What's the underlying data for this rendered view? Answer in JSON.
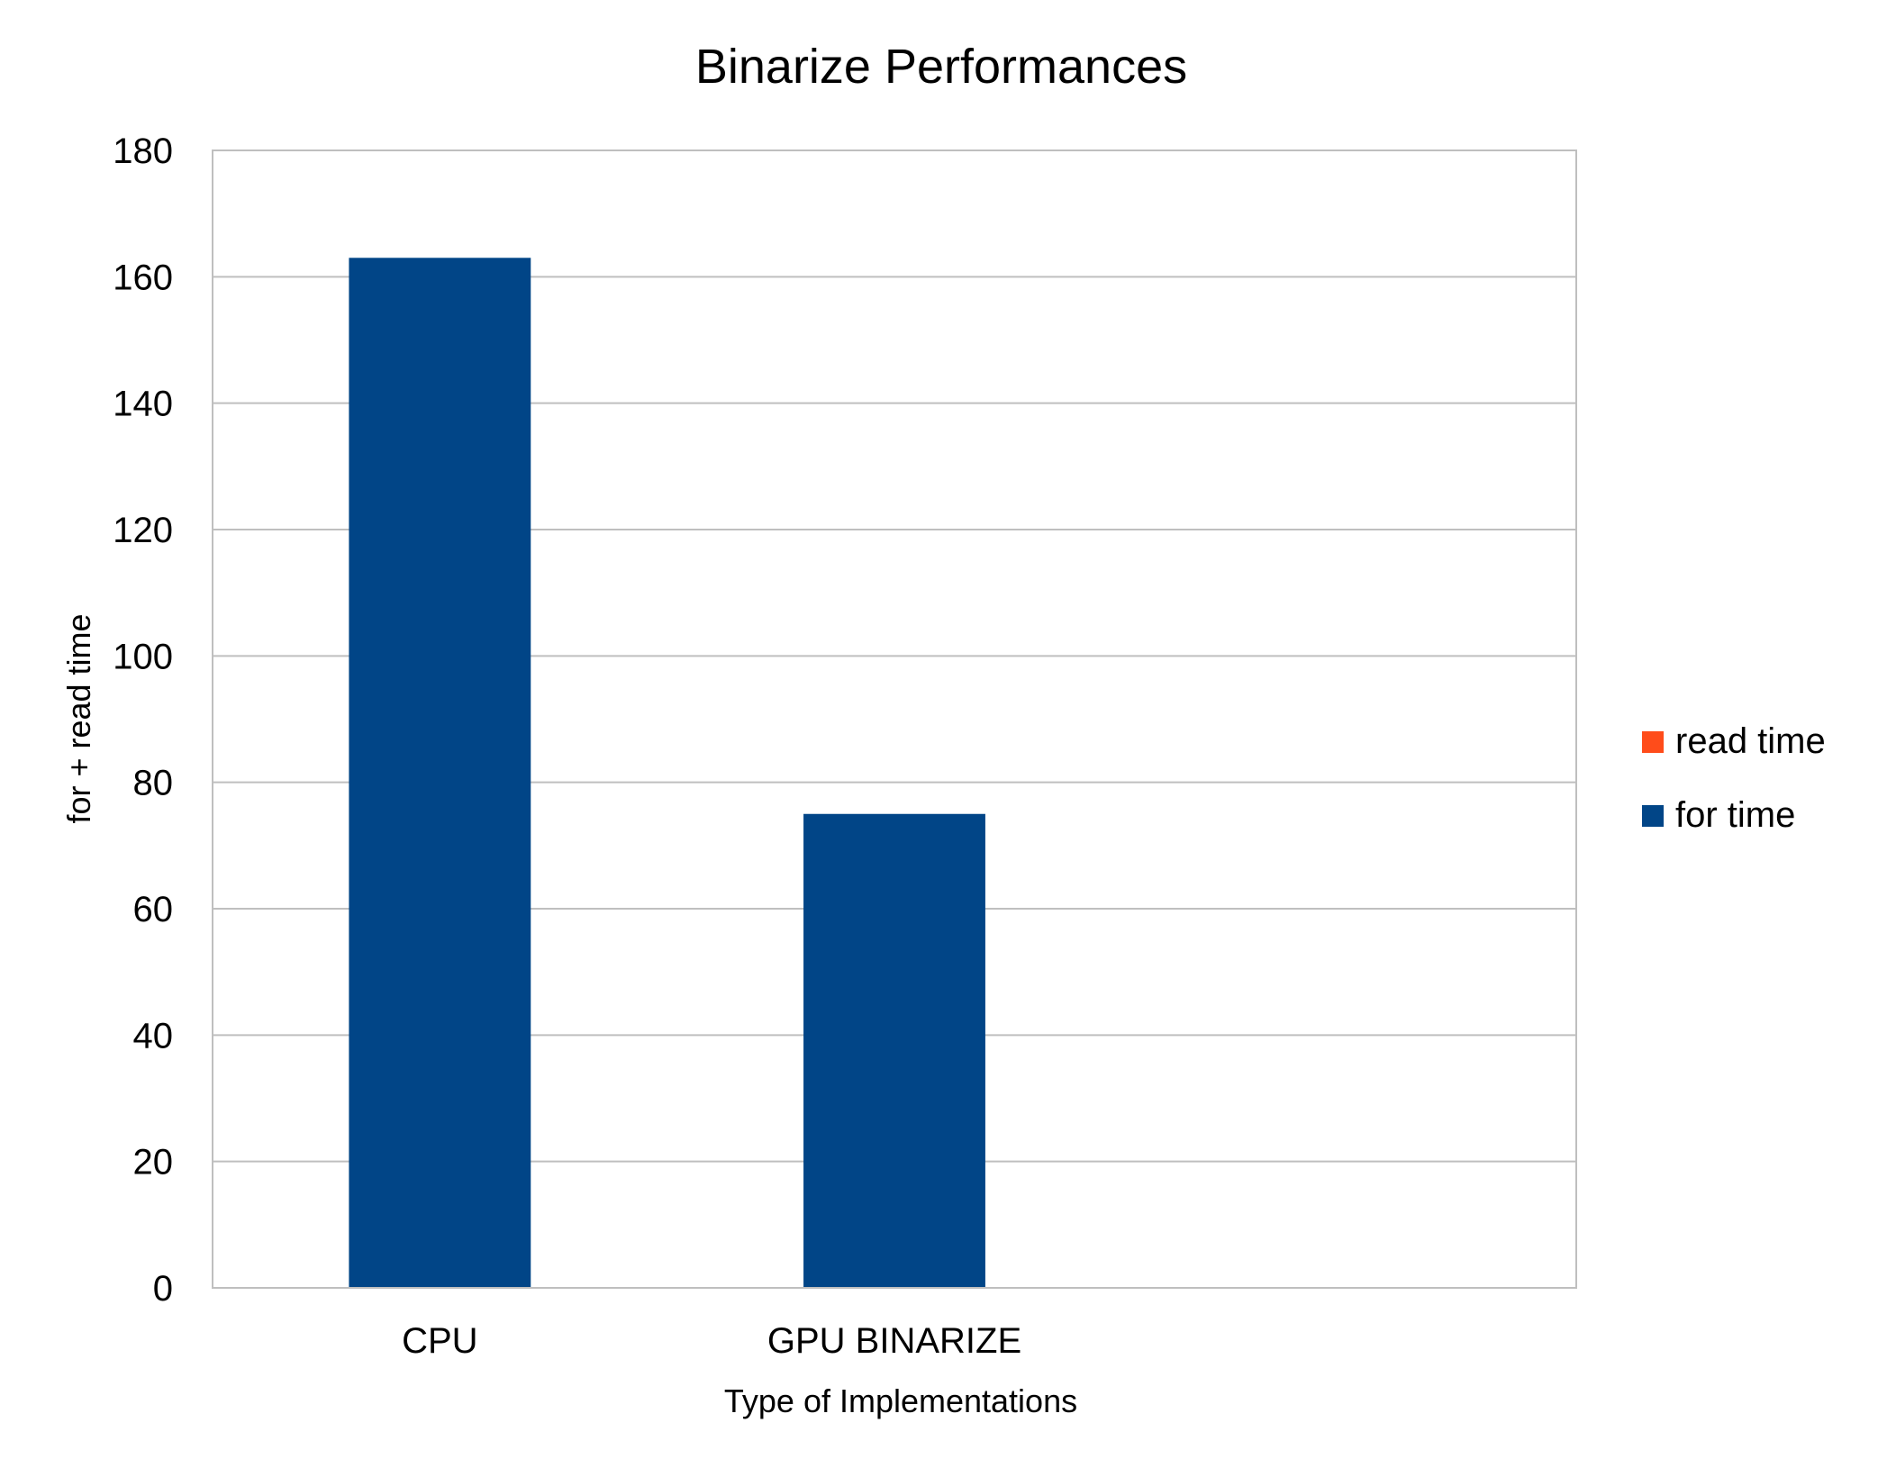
{
  "chart_data": {
    "type": "bar",
    "stacked": true,
    "title": "Binarize Performances",
    "xlabel": "Type of Implementations",
    "ylabel": "for + read time",
    "categories": [
      "CPU",
      "GPU BINARIZE",
      ""
    ],
    "series": [
      {
        "name": "for time",
        "values": [
          163,
          75,
          0
        ],
        "color": "#014587"
      },
      {
        "name": "read time",
        "values": [
          0,
          0,
          0
        ],
        "color": "#FF4C1A"
      }
    ],
    "ylim": [
      0,
      180
    ],
    "yticks": [
      "0",
      "20",
      "40",
      "60",
      "80",
      "100",
      "120",
      "140",
      "160",
      "180"
    ],
    "grid": true,
    "legend": {
      "placement": "right",
      "entries": [
        {
          "label": "read time",
          "color": "#FF4C1A"
        },
        {
          "label": "for time",
          "color": "#014587"
        }
      ]
    }
  }
}
